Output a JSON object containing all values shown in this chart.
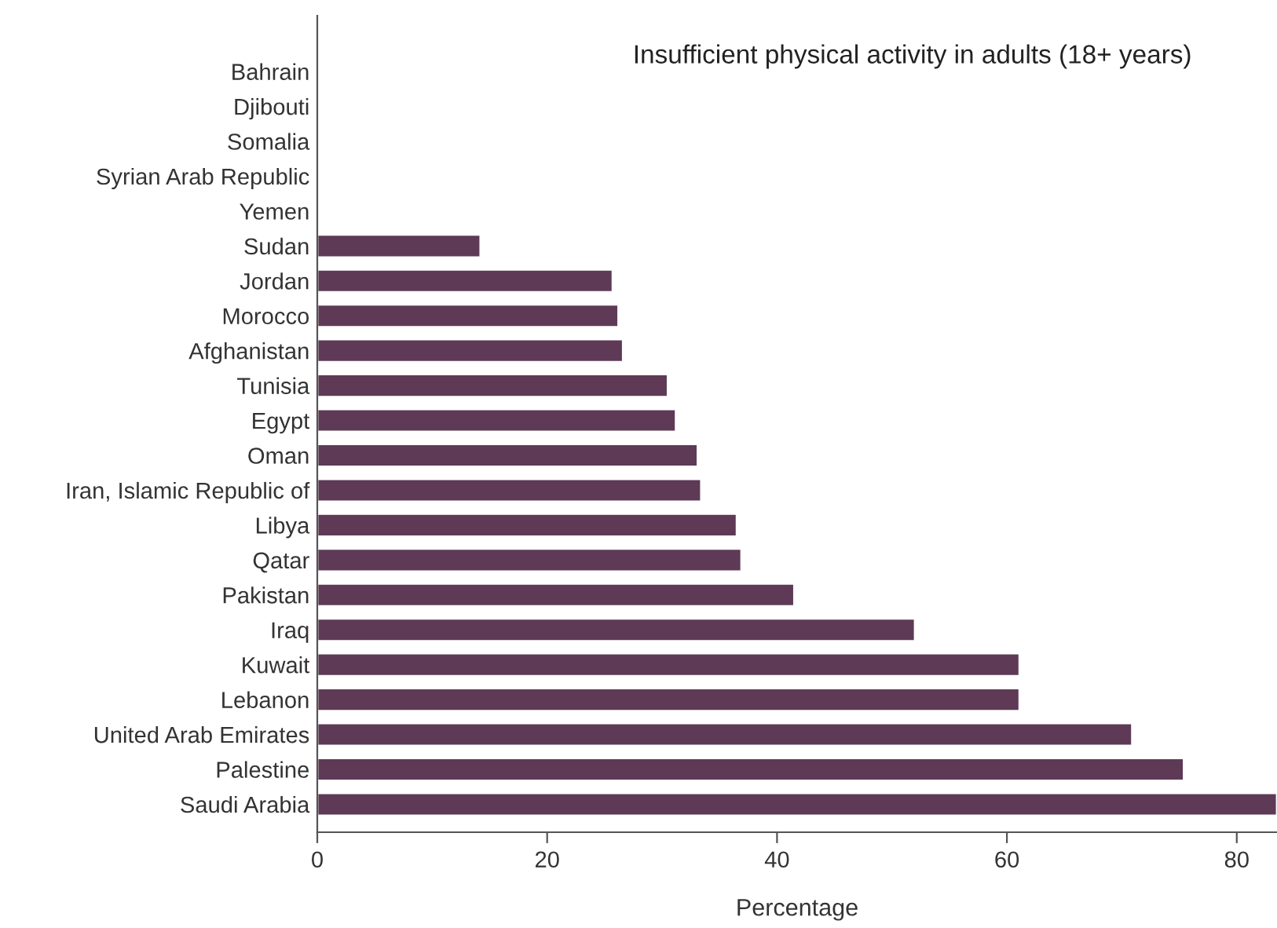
{
  "chart_data": {
    "type": "bar",
    "orientation": "horizontal",
    "title": "Insufficient physical activity in adults (18+ years)",
    "xlabel": "Percentage",
    "categories": [
      "Bahrain",
      "Djibouti",
      "Somalia",
      "Syrian Arab Republic",
      "Yemen",
      "Sudan",
      "Jordan",
      "Morocco",
      "Afghanistan",
      "Tunisia",
      "Egypt",
      "Oman",
      "Iran, Islamic Republic of",
      "Libya",
      "Qatar",
      "Pakistan",
      "Iraq",
      "Kuwait",
      "Lebanon",
      "United Arab Emirates",
      "Palestine",
      "Saudi Arabia"
    ],
    "values": [
      null,
      null,
      null,
      null,
      null,
      14.2,
      25.7,
      26.2,
      26.6,
      30.5,
      31.2,
      33.1,
      33.4,
      36.5,
      36.9,
      41.5,
      52.0,
      61.1,
      61.1,
      70.9,
      75.4,
      83.5
    ],
    "color": "#5e3a56",
    "xlim": [
      0,
      83.5
    ],
    "xticks": [
      0,
      20,
      40,
      60,
      80
    ],
    "grid": false
  }
}
